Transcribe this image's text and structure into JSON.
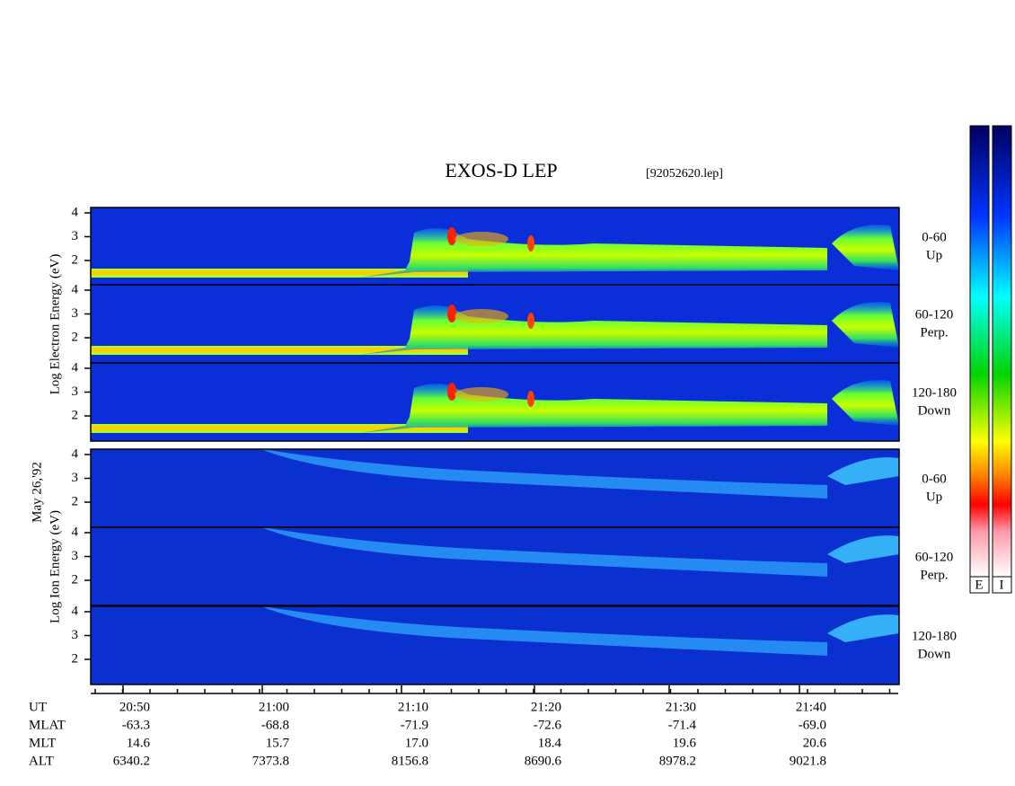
{
  "title": "EXOS-D LEP",
  "file": "[92052620.lep]",
  "date": "May 26,'92",
  "electron": {
    "axis_label": "Log  Electron  Energy (eV)",
    "panels": [
      {
        "range": "0-60",
        "direction": "Up"
      },
      {
        "range": "60-120",
        "direction": "Perp."
      },
      {
        "range": "120-180",
        "direction": "Down"
      }
    ]
  },
  "ion": {
    "axis_label": "Log   Ion   Energy (eV)",
    "panels": [
      {
        "range": "0-60",
        "direction": "Up"
      },
      {
        "range": "60-120",
        "direction": "Perp."
      },
      {
        "range": "120-180",
        "direction": "Down"
      }
    ]
  },
  "yticks": [
    4,
    3,
    2
  ],
  "time_axis": {
    "rows": [
      {
        "label": "UT",
        "values": [
          "20:50",
          "21:00",
          "21:10",
          "21:20",
          "21:30",
          "21:40"
        ]
      },
      {
        "label": "MLAT",
        "values": [
          "-63.3",
          "-68.8",
          "-71.9",
          "-72.6",
          "-71.4",
          "-69.0"
        ]
      },
      {
        "label": "MLT",
        "values": [
          "14.6",
          "15.7",
          "17.0",
          "18.4",
          "19.6",
          "20.6"
        ]
      },
      {
        "label": "ALT",
        "values": [
          "6340.2",
          "7373.8",
          "8156.8",
          "8690.6",
          "8978.2",
          "9021.8"
        ]
      }
    ]
  },
  "colorbars": [
    "E",
    "I"
  ]
}
